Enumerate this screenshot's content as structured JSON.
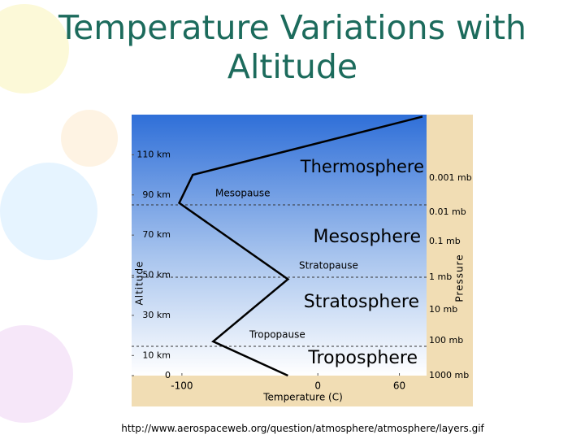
{
  "title": "Temperature Variations with Altitude",
  "source": "http://www.aerospaceweb.org/question/atmosphere/atmosphere/layers.gif",
  "chart_data": {
    "type": "line",
    "x_label": "Temperature (C)",
    "y_label": "Altitude",
    "y2_label": "Pressure",
    "x": [
      -22,
      -77,
      -22,
      -102,
      -92,
      77
    ],
    "values": [
      0,
      17,
      48,
      86,
      100,
      129
    ],
    "color": "#000000",
    "xlim": [
      -137,
      80
    ],
    "xticks": [
      -100,
      0,
      60
    ],
    "ylim": [
      0,
      130
    ],
    "yticks": [
      {
        "value": 0,
        "label": "0"
      },
      {
        "value": 10,
        "label": "10 km"
      },
      {
        "value": 30,
        "label": "30 km"
      },
      {
        "value": 50,
        "label": "50 km"
      },
      {
        "value": 70,
        "label": "70 km"
      },
      {
        "value": 90,
        "label": "90 km"
      },
      {
        "value": 110,
        "label": "110 km"
      }
    ],
    "pressure_labels": [
      "0.001 mb",
      "0.01 mb",
      "0.1 mb",
      "1 mb",
      "10 mb",
      "100 mb",
      "1000 mb"
    ],
    "layers": [
      "Thermosphere",
      "Mesosphere",
      "Stratosphere",
      "Troposphere"
    ],
    "boundaries": [
      "Mesopause",
      "Stratopause",
      "Tropopause"
    ]
  }
}
